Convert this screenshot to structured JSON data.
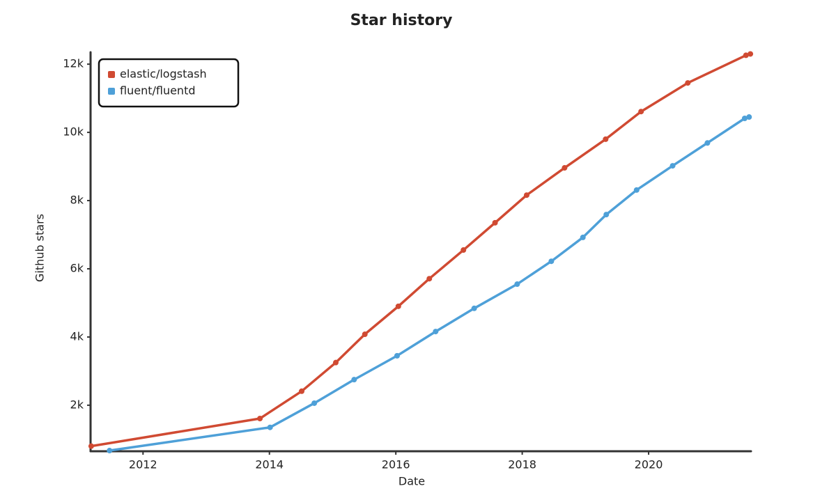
{
  "chart_data": {
    "type": "line",
    "title": "Star history",
    "x_label": "Date",
    "y_label": "Github stars",
    "xlim": [
      2011.17,
      2021.62
    ],
    "xticks": [
      2012,
      2014,
      2016,
      2018,
      2020
    ],
    "ylim": [
      650,
      12350
    ],
    "yticks": [
      {
        "value": 2000,
        "label": "2k"
      },
      {
        "value": 4000,
        "label": "4k"
      },
      {
        "value": 6000,
        "label": "6k"
      },
      {
        "value": 8000,
        "label": "8k"
      },
      {
        "value": 10000,
        "label": "10k"
      },
      {
        "value": 12000,
        "label": "12k"
      }
    ],
    "grid": false,
    "legend": "upper left",
    "series": [
      {
        "name": "elastic/logstash",
        "color": "#d04a32",
        "x": [
          2011.18,
          2013.85,
          2014.51,
          2015.05,
          2015.51,
          2016.04,
          2016.53,
          2017.07,
          2017.57,
          2018.07,
          2018.67,
          2019.32,
          2019.88,
          2020.62,
          2021.54,
          2021.61
        ],
        "values": [
          800,
          1610,
          2410,
          3250,
          4080,
          4900,
          5710,
          6550,
          7350,
          8160,
          8960,
          9800,
          10610,
          11450,
          12260,
          12300
        ]
      },
      {
        "name": "fluent/fluentd",
        "color": "#4ea0d8",
        "x": [
          2011.47,
          2014.01,
          2014.71,
          2015.34,
          2016.02,
          2016.63,
          2017.24,
          2017.92,
          2018.46,
          2018.96,
          2019.33,
          2019.81,
          2020.38,
          2020.93,
          2021.52,
          2021.59
        ],
        "values": [
          670,
          1350,
          2060,
          2750,
          3450,
          4160,
          4840,
          5550,
          6220,
          6920,
          7590,
          8310,
          9020,
          9690,
          10410,
          10450
        ]
      }
    ]
  }
}
